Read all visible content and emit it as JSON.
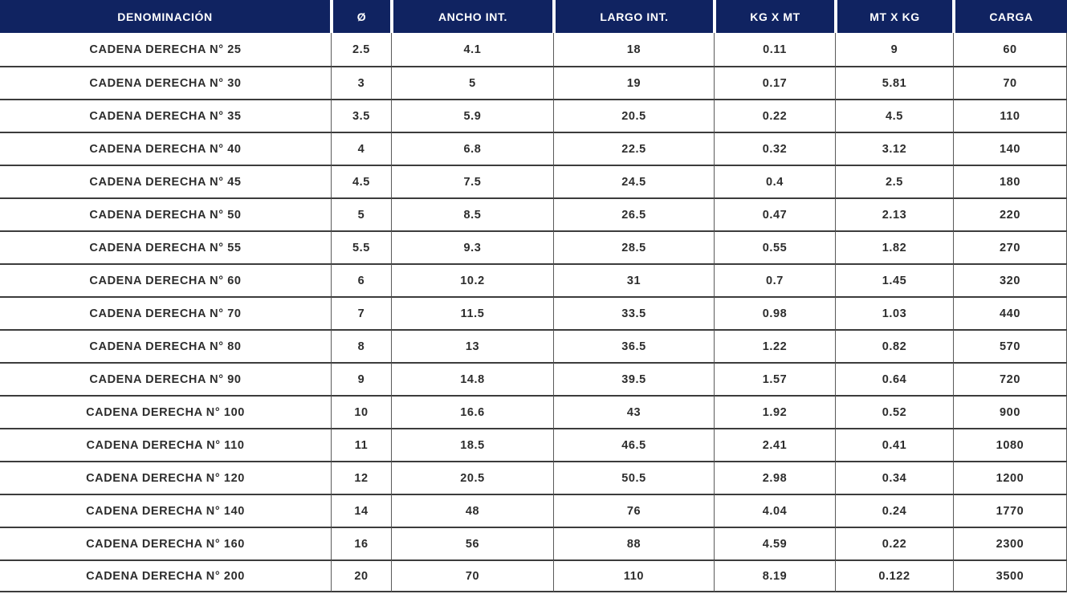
{
  "chart_data": {
    "type": "table",
    "title": "",
    "columns": [
      {
        "key": "denominacion",
        "label": "DENOMINACIÓN"
      },
      {
        "key": "diametro",
        "label": "Ø"
      },
      {
        "key": "ancho_int",
        "label": "ANCHO INT."
      },
      {
        "key": "largo_int",
        "label": "LARGO INT."
      },
      {
        "key": "kg_x_mt",
        "label": "KG X MT"
      },
      {
        "key": "mt_x_kg",
        "label": "MT X KG"
      },
      {
        "key": "carga",
        "label": "CARGA"
      }
    ],
    "rows": [
      [
        "CADENA DERECHA N° 25",
        "2.5",
        "4.1",
        "18",
        "0.11",
        "9",
        "60"
      ],
      [
        "CADENA DERECHA N° 30",
        "3",
        "5",
        "19",
        "0.17",
        "5.81",
        "70"
      ],
      [
        "CADENA DERECHA N° 35",
        "3.5",
        "5.9",
        "20.5",
        "0.22",
        "4.5",
        "110"
      ],
      [
        "CADENA DERECHA N° 40",
        "4",
        "6.8",
        "22.5",
        "0.32",
        "3.12",
        "140"
      ],
      [
        "CADENA DERECHA N° 45",
        "4.5",
        "7.5",
        "24.5",
        "0.4",
        "2.5",
        "180"
      ],
      [
        "CADENA DERECHA N° 50",
        "5",
        "8.5",
        "26.5",
        "0.47",
        "2.13",
        "220"
      ],
      [
        "CADENA DERECHA N° 55",
        "5.5",
        "9.3",
        "28.5",
        "0.55",
        "1.82",
        "270"
      ],
      [
        "CADENA DERECHA N° 60",
        "6",
        "10.2",
        "31",
        "0.7",
        "1.45",
        "320"
      ],
      [
        "CADENA DERECHA N° 70",
        "7",
        "11.5",
        "33.5",
        "0.98",
        "1.03",
        "440"
      ],
      [
        "CADENA DERECHA N° 80",
        "8",
        "13",
        "36.5",
        "1.22",
        "0.82",
        "570"
      ],
      [
        "CADENA DERECHA N° 90",
        "9",
        "14.8",
        "39.5",
        "1.57",
        "0.64",
        "720"
      ],
      [
        "CADENA DERECHA N° 100",
        "10",
        "16.6",
        "43",
        "1.92",
        "0.52",
        "900"
      ],
      [
        "CADENA DERECHA N° 110",
        "11",
        "18.5",
        "46.5",
        "2.41",
        "0.41",
        "1080"
      ],
      [
        "CADENA DERECHA N° 120",
        "12",
        "20.5",
        "50.5",
        "2.98",
        "0.34",
        "1200"
      ],
      [
        "CADENA DERECHA N° 140",
        "14",
        "48",
        "76",
        "4.04",
        "0.24",
        "1770"
      ],
      [
        "CADENA DERECHA N° 160",
        "16",
        "56",
        "88",
        "4.59",
        "0.22",
        "2300"
      ],
      [
        "CADENA DERECHA N° 200",
        "20",
        "70",
        "110",
        "8.19",
        "0.122",
        "3500"
      ]
    ],
    "layout": {
      "grid": "horizontal and vertical rules",
      "legend_position": "none"
    }
  },
  "colors": {
    "header_bg": "#102361",
    "header_text": "#ffffff",
    "cell_text": "#2d2d2d",
    "row_separator": "#3c3c3c",
    "column_separator": "#5a5a5a",
    "background": "#ffffff"
  }
}
